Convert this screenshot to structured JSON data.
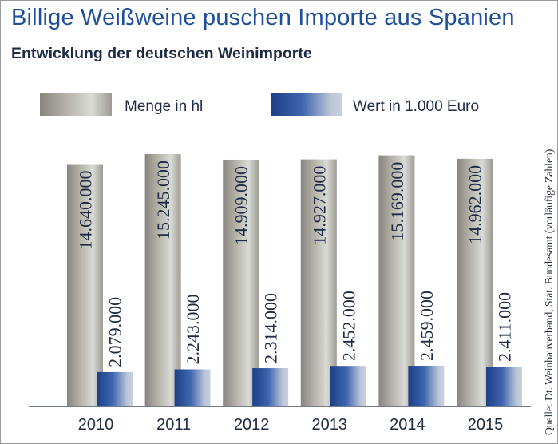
{
  "header": {
    "title": "Billige Weißweine puschen Importe aus Spanien",
    "subtitle": "Entwicklung der deutschen Weinimporte"
  },
  "source": "Quelle: Dt. Weinbauverband, Stat. Bundesamt (vorläufige Zahlen)",
  "colors": {
    "title": "#1e4f9b",
    "menge": "#a8a49a",
    "wert": "#2a55a3"
  },
  "chart_data": {
    "type": "bar",
    "categories": [
      "2010",
      "2011",
      "2012",
      "2013",
      "2014",
      "2015"
    ],
    "series": [
      {
        "name": "Menge in hl",
        "values": [
          14640000,
          15245000,
          14909000,
          14927000,
          15169000,
          14962000
        ],
        "labels": [
          "14.640.000",
          "15.245.000",
          "14.909.000",
          "14.927.000",
          "15.169.000",
          "14.962.000"
        ]
      },
      {
        "name": "Wert in 1.000 Euro",
        "values": [
          2079000,
          2243000,
          2314000,
          2452000,
          2459000,
          2411000
        ],
        "labels": [
          "2.079.000",
          "2.243.000",
          "2.314.000",
          "2.452.000",
          "2.459.000",
          "2.411.000"
        ]
      }
    ],
    "legend_position": "top",
    "grid": false,
    "ylim": [
      0,
      15245000
    ]
  }
}
